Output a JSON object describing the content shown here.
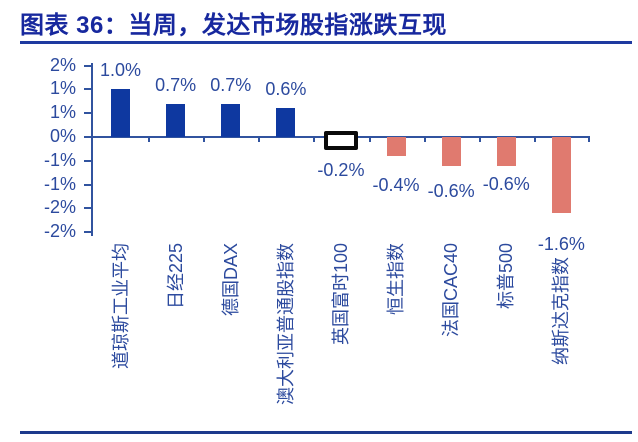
{
  "figure": {
    "title": "图表 36：当周，发达市场股指涨跌互现"
  },
  "chart_data": {
    "type": "bar",
    "title": "当周，发达市场股指涨跌互现",
    "categories": [
      "道琼斯工业平均",
      "日经225",
      "德国DAX",
      "澳大利亚普通股指数",
      "英国富时100",
      "恒生指数",
      "法国CAC40",
      "标普500",
      "纳斯达克指数"
    ],
    "values": [
      1.0,
      0.7,
      0.7,
      0.6,
      -0.2,
      -0.4,
      -0.6,
      -0.6,
      -1.6
    ],
    "value_labels": [
      "1.0%",
      "0.7%",
      "0.7%",
      "0.6%",
      "-0.2%",
      "-0.4%",
      "-0.6%",
      "-0.6%",
      "-1.6%"
    ],
    "unit": "%",
    "y_tick_labels": [
      "2%",
      "1%",
      "1%",
      "0%",
      "-1%",
      "-1%",
      "-2%",
      "-2%"
    ],
    "y_tick_values": [
      1.5,
      1.0,
      0.5,
      0,
      -0.5,
      -1.0,
      -1.5,
      -2.0
    ],
    "ylim": [
      -2.0,
      1.5
    ],
    "grid": "off",
    "legend": "none",
    "highlight": {
      "category": "英国富时100",
      "style": "black-outline-box"
    },
    "colors": {
      "positive_bar": "#0e38a0",
      "negative_bar": "#e07a6f",
      "label_text": "#2c4a9e",
      "title_text": "#17289e",
      "axis": "#31539f",
      "highlight_box_border": "#0a0a0a"
    }
  }
}
